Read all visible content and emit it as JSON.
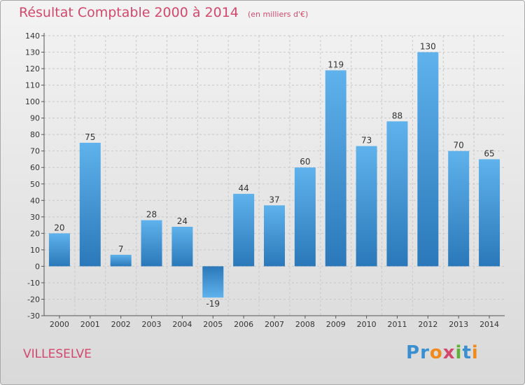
{
  "chart_data": {
    "type": "bar",
    "title": "Résultat Comptable 2000 à 2014",
    "subtitle": "(en milliers d'€)",
    "categories": [
      "2000",
      "2001",
      "2002",
      "2003",
      "2004",
      "2005",
      "2006",
      "2007",
      "2008",
      "2009",
      "2010",
      "2011",
      "2012",
      "2013",
      "2014"
    ],
    "values": [
      20,
      75,
      7,
      28,
      24,
      -19,
      44,
      37,
      60,
      119,
      73,
      88,
      130,
      70,
      65
    ],
    "ylim": [
      -30,
      140
    ],
    "yticks": [
      -30,
      -20,
      -10,
      0,
      10,
      20,
      30,
      40,
      50,
      60,
      70,
      80,
      90,
      100,
      110,
      120,
      130,
      140
    ],
    "grid": true,
    "bar_color": "#3f94d6"
  },
  "commune": "VILLESELVE",
  "logo": {
    "letters": [
      {
        "ch": "P",
        "color": "#3a8fd0"
      },
      {
        "ch": "r",
        "color": "#3a8fd0"
      },
      {
        "ch": "o",
        "color": "#f08a1c"
      },
      {
        "ch": "x",
        "color": "#d2486c"
      },
      {
        "ch": "i",
        "color": "#5db135"
      },
      {
        "ch": "t",
        "color": "#3a8fd0"
      },
      {
        "ch": "i",
        "color": "#f08a1c"
      }
    ]
  }
}
